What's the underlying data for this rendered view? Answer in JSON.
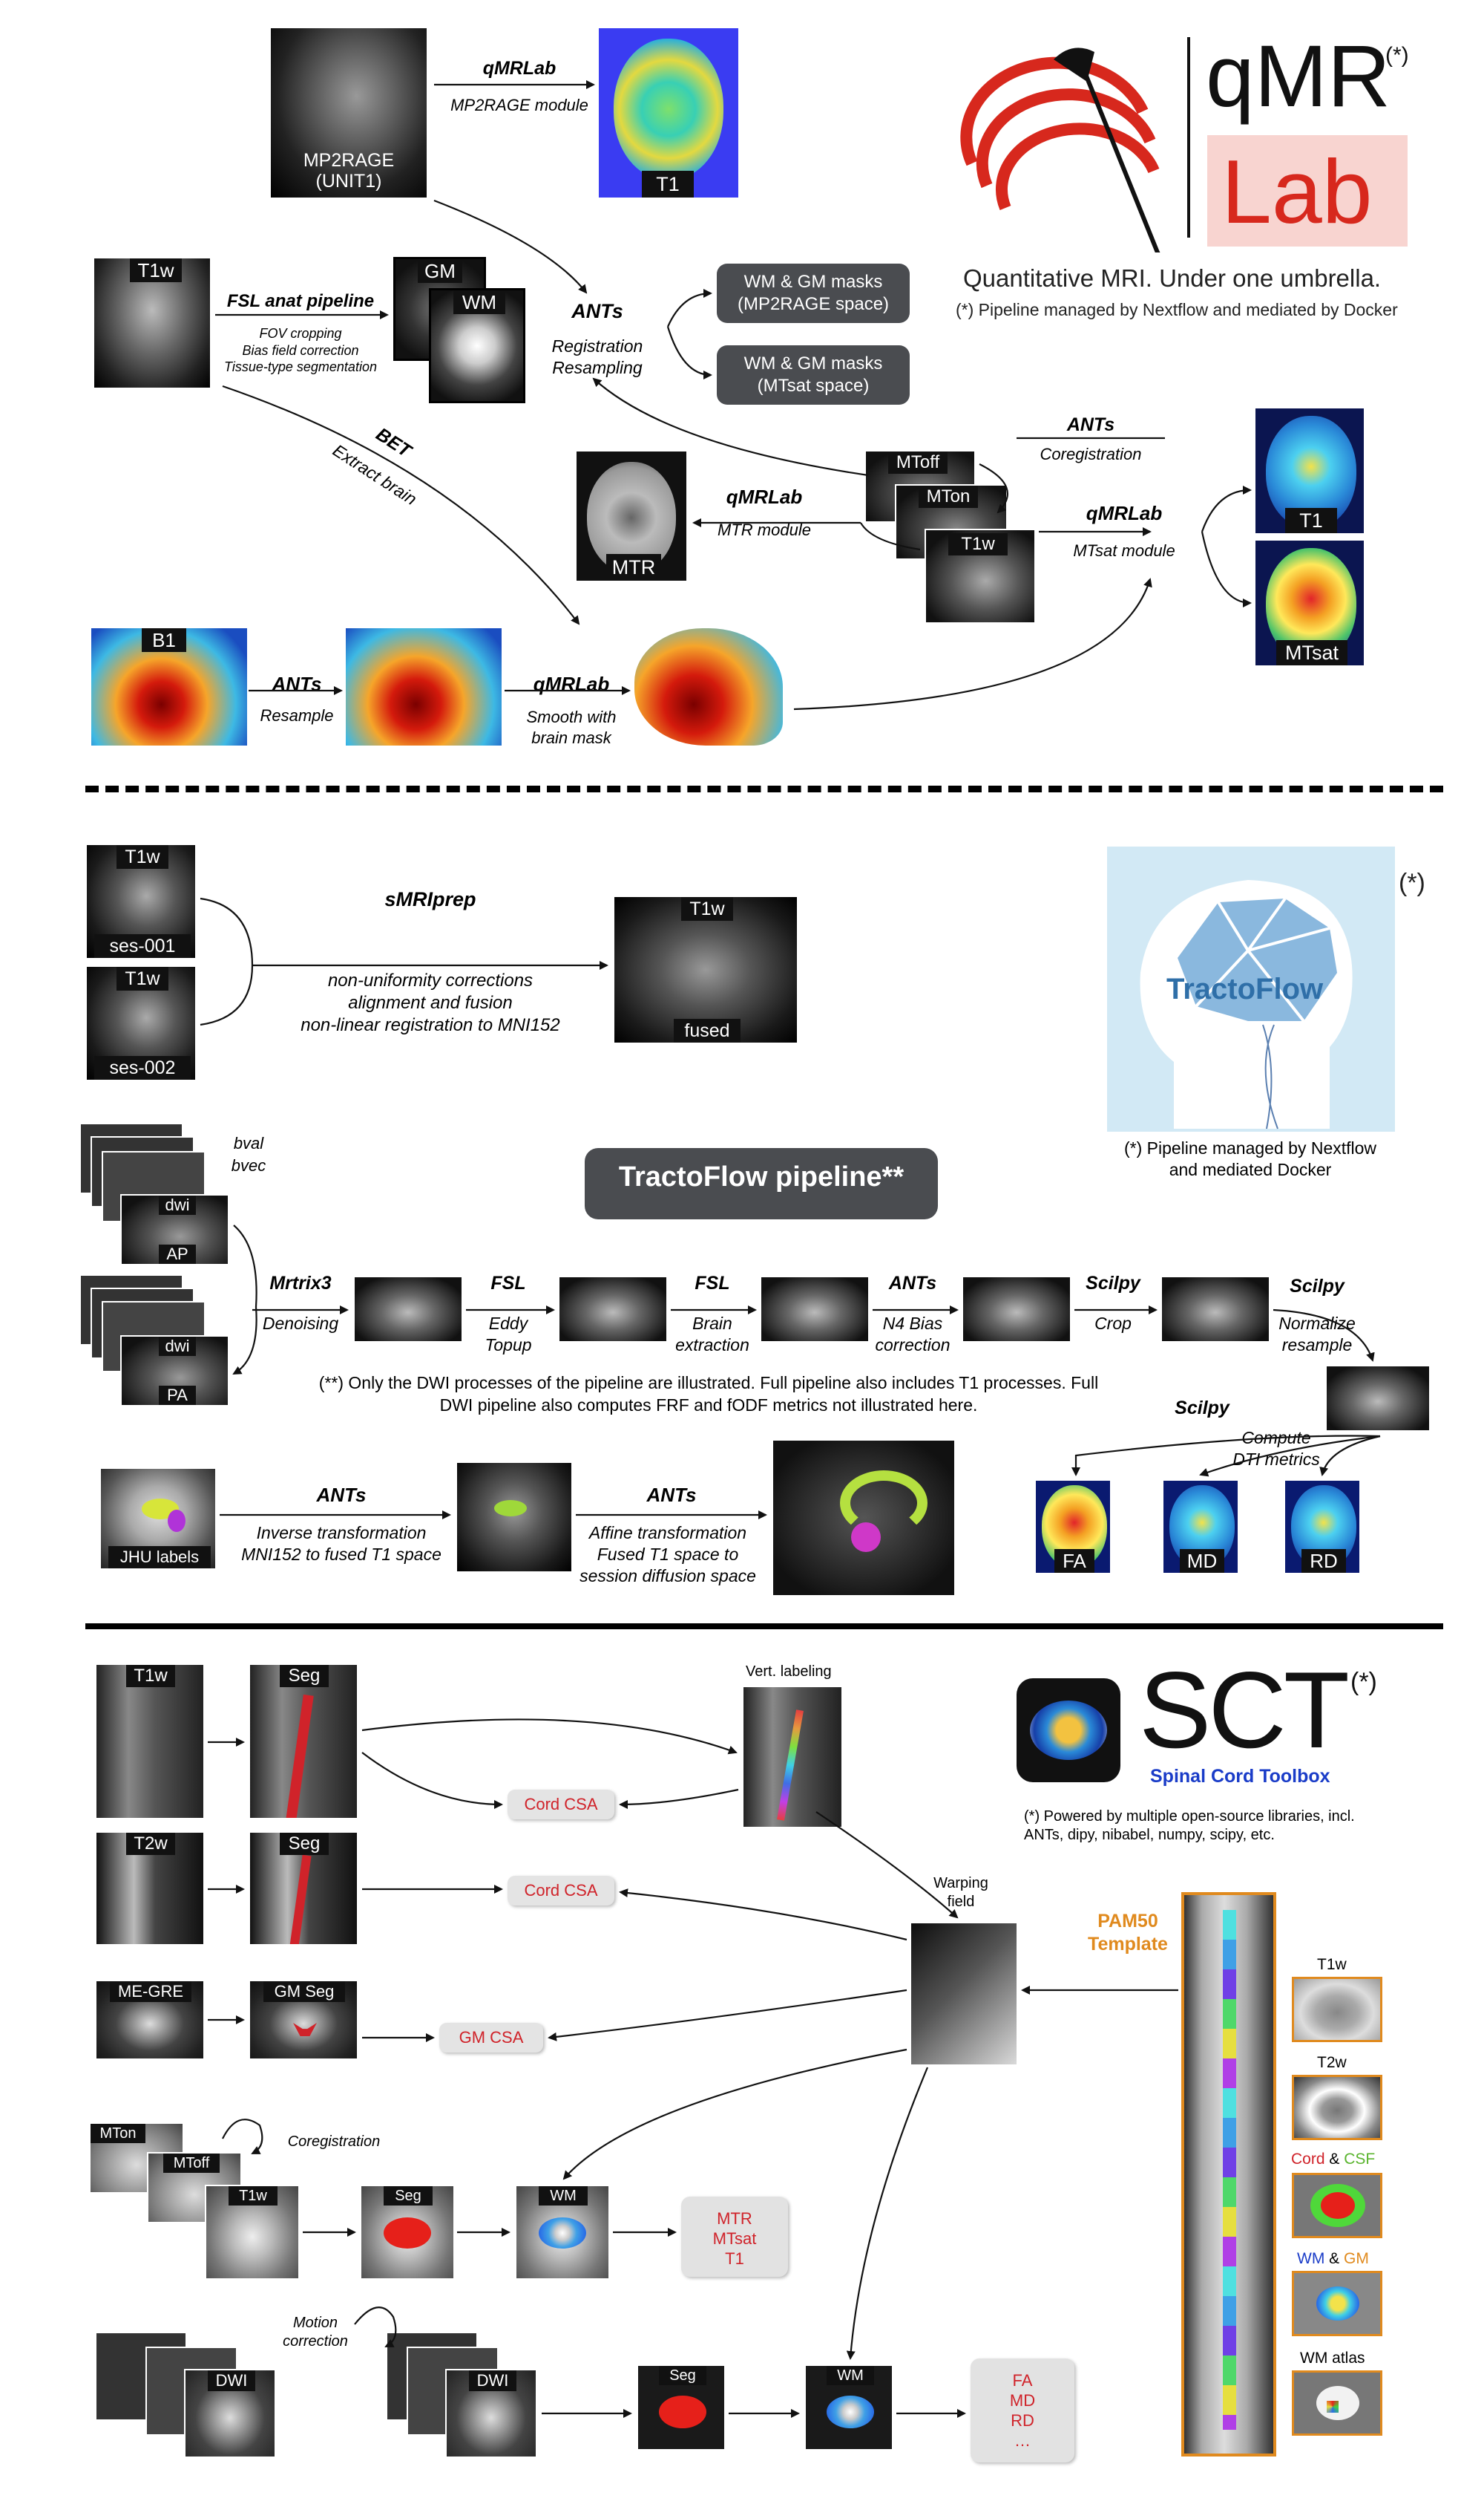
{
  "qmrlab": {
    "logo": {
      "word_qmr": "qMR",
      "word_lab": "Lab",
      "star": "(*)",
      "tagline": "Quantitative MRI. Under one umbrella.",
      "note": "(*) Pipeline managed by Nextflow and mediated by Docker"
    },
    "mp2rage_label": "MP2RAGE\n(UNIT1)",
    "qmrlab_tool": "qMRLab",
    "mp2rage_module": "MP2RAGE module",
    "t1_label": "T1",
    "t1w_label": "T1w",
    "fsl_anat": "FSL anat pipeline",
    "fsl_steps": "FOV cropping\nBias field correction\nTissue-type segmentation",
    "gm_label": "GM",
    "wm_label": "WM",
    "ants": "ANTs",
    "reg_resample": "Registration\nResampling",
    "mask_mp2rage": "WM & GM masks\n(MP2RAGE space)",
    "mask_mtsat": "WM & GM masks\n(MTsat space)",
    "bet": "BET",
    "extract_brain": "Extract brain",
    "ants_coreg": "ANTs",
    "coregistration": "Coregistration",
    "mtoff": "MToff",
    "mton": "MTon",
    "t1w_small": "T1w",
    "mtr_qmrlab": "qMRLab",
    "mtr_module": "MTR module",
    "mtr_label": "MTR",
    "mtsat_qmrlab": "qMRLab",
    "mtsat_module": "MTsat module",
    "t1_out": "T1",
    "mtsat_out": "MTsat",
    "b1_label": "B1",
    "ants_resample": "ANTs",
    "resample": "Resample",
    "qmrlab_smooth": "qMRLab",
    "smooth": "Smooth with\nbrain mask"
  },
  "tractoflow": {
    "t1w_a": "T1w",
    "ses1": "ses-001",
    "t1w_b": "T1w",
    "ses2": "ses-002",
    "smriprep": "sMRIprep",
    "smriprep_steps": "non-uniformity corrections\nalignment and fusion\nnon-linear registration to MNI152",
    "fused_t1w": "T1w",
    "fused": "fused",
    "logo_star": "(*)",
    "logo_text": "TractoFlow",
    "logo_note": "(*) Pipeline managed by Nextflow\nand mediated Docker",
    "bval": "bval",
    "bvec": "bvec",
    "dwi_ap": "dwi",
    "ap": "AP",
    "dwi_pa": "dwi",
    "pa": "PA",
    "pipeline_title": "TractoFlow pipeline**",
    "steps": [
      {
        "tool": "Mrtrix3",
        "desc": "Denoising"
      },
      {
        "tool": "FSL",
        "desc": "Eddy\nTopup"
      },
      {
        "tool": "FSL",
        "desc": "Brain\nextraction"
      },
      {
        "tool": "ANTs",
        "desc": "N4 Bias\ncorrection"
      },
      {
        "tool": "Scilpy",
        "desc": "Crop"
      },
      {
        "tool": "Scilpy",
        "desc": "Normalize\nresample"
      },
      {
        "tool": "Scilpy",
        "desc": "Compute\nDTI metrics"
      }
    ],
    "footnote": "(**) Only the DWI processes of the pipeline are illustrated. Full pipeline also includes T1 processes. Full\nDWI pipeline also computes FRF and fODF metrics not illustrated here.",
    "jhu": "JHU labels",
    "ants1": "ANTs",
    "inverse": "Inverse transformation\nMNI152 to fused T1 space",
    "ants2": "ANTs",
    "affine": "Affine transformation\nFused T1 space to\nsession diffusion space",
    "fa": "FA",
    "md": "MD",
    "rd": "RD"
  },
  "sct": {
    "logo_text": "SCT",
    "logo_star": "(*)",
    "logo_sub": "Spinal Cord Toolbox",
    "note": "(*) Powered by multiple open-source libraries, incl.\nANTs, dipy, nibabel, numpy, scipy, etc.",
    "t1w": "T1w",
    "seg1": "Seg",
    "vert": "Vert. labeling",
    "cord_csa1": "Cord CSA",
    "t2w": "T2w",
    "seg2": "Seg",
    "cord_csa2": "Cord CSA",
    "warping": "Warping\nfield",
    "megre": "ME-GRE",
    "gmseg": "GM Seg",
    "gm_csa": "GM CSA",
    "pam50": "PAM50\nTemplate",
    "tmpl_t1w": "T1w",
    "tmpl_t2w": "T2w",
    "cord": "Cord",
    "amp1": " & ",
    "csf": "CSF",
    "wm": "WM",
    "amp2": " & ",
    "gm": "GM",
    "wm_atlas": "WM atlas",
    "mton": "MTon",
    "mtoff": "MToff",
    "coregistration": "Coregistration",
    "t1w_mt": "T1w",
    "seg_mt": "Seg",
    "wm_mt": "WM",
    "mt_results": "MTR\nMTsat\nT1",
    "motion": "Motion\ncorrection",
    "dwi_a": "DWI",
    "dwi_b": "DWI",
    "seg_dwi": "Seg",
    "wm_dwi": "WM",
    "dwi_results": "FA\nMD\nRD\n…"
  },
  "colors": {
    "qmr_red": "#d7281d",
    "lab_bg": "#f8d4d0",
    "pill": "#4a4c50",
    "sct_blue": "#1a3cc8",
    "pam_orange": "#e08a1e",
    "csa_red": "#d0232a"
  }
}
